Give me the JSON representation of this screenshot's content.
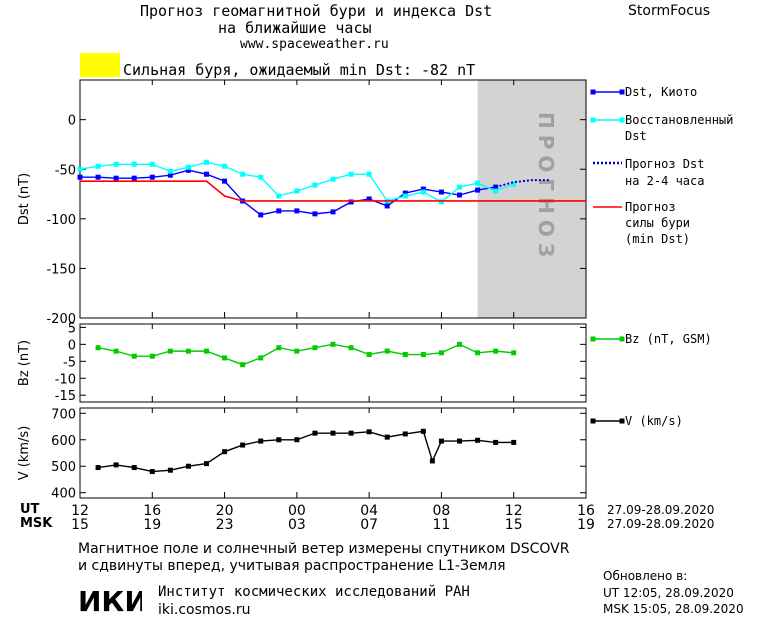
{
  "header": {
    "title_line1": "Прогноз геомагнитной бури и индекса Dst",
    "title_line2": "на ближайшие часы",
    "site": "www.spaceweather.ru",
    "brand": "StormFocus"
  },
  "storm_banner": {
    "label": "Сильная буря, ожидаемый min Dst: -82 nT",
    "swatch_color": "#ffff00"
  },
  "forecast_band_text": "ПРОГНОЗ",
  "legend": {
    "dst_kyoto": "Dst, Киото",
    "restored_1": "Восстановленный",
    "restored_2": "Dst",
    "forecast_1": "Прогноз Dst",
    "forecast_2": "на 2-4 часа",
    "storm_1": "Прогноз",
    "storm_2": "силы бури",
    "storm_3": "(min Dst)",
    "bz": "Bz (nT, GSM)",
    "v": "V (km/s)"
  },
  "time_axis": {
    "ut_label": "UT",
    "msk_label": "MSK",
    "ut_ticks": [
      "12",
      "16",
      "20",
      "00",
      "04",
      "08",
      "12",
      "16"
    ],
    "msk_ticks": [
      "15",
      "19",
      "23",
      "03",
      "07",
      "11",
      "15",
      "19"
    ],
    "date_range": "27.09-28.09.2020"
  },
  "footer": {
    "line1": "Магнитное поле и солнечный ветер измерены спутником DSCOVR",
    "line2": "и сдвинуты вперед, учитывая распространение L1-Земля",
    "institute": "Институт космических исследований РАН",
    "institute_site": "iki.cosmos.ru",
    "logo_text": "ИКИ",
    "updated_label": "Обновлено в:",
    "updated_ut": "UT  12:05, 28.09.2020",
    "updated_msk": "MSK 15:05, 28.09.2020"
  },
  "chart_data": [
    {
      "type": "line",
      "ylabel": "Dst (nT)",
      "xlim": [
        12,
        40
      ],
      "ylim": [
        -200,
        40
      ],
      "yticks": [
        0,
        -50,
        -100,
        -150,
        -200
      ],
      "forecast_band": [
        34,
        40
      ],
      "series": [
        {
          "name": "Dst, Киото",
          "color": "#0000ff",
          "x": [
            12,
            13,
            14,
            15,
            16,
            17,
            18,
            19,
            20,
            21,
            22,
            23,
            24,
            25,
            26,
            27,
            28,
            29,
            30,
            31,
            32,
            33,
            34,
            35
          ],
          "y": [
            -58,
            -58,
            -59,
            -59,
            -58,
            -56,
            -51,
            -55,
            -62,
            -82,
            -96,
            -92,
            -92,
            -95,
            -93,
            -83,
            -80,
            -87,
            -74,
            -70,
            -73,
            -76,
            -71,
            -68
          ]
        },
        {
          "name": "Восстановленный Dst",
          "color": "#00ffff",
          "x": [
            12,
            13,
            14,
            15,
            16,
            17,
            18,
            19,
            20,
            21,
            22,
            23,
            24,
            25,
            26,
            27,
            28,
            29,
            30,
            31,
            32,
            33,
            34,
            35,
            36
          ],
          "y": [
            -50,
            -47,
            -45,
            -45,
            -45,
            -52,
            -48,
            -43,
            -47,
            -55,
            -58,
            -77,
            -72,
            -66,
            -60,
            -55,
            -55,
            -82,
            -77,
            -73,
            -83,
            -68,
            -64,
            -72,
            -65
          ]
        },
        {
          "name": "Прогноз Dst на 2-4 часа",
          "color": "#0000cc",
          "x": [
            35,
            36,
            37,
            38
          ],
          "y": [
            -68,
            -63,
            -61,
            -61
          ]
        },
        {
          "name": "Прогноз силы бури (min Dst)",
          "color": "#ff0000",
          "x": [
            12,
            19,
            20,
            21,
            40
          ],
          "y": [
            -62,
            -62,
            -77,
            -82,
            -82
          ]
        }
      ]
    },
    {
      "type": "line",
      "ylabel": "Bz (nT)",
      "xlim": [
        12,
        40
      ],
      "ylim": [
        -17,
        6
      ],
      "yticks": [
        5,
        0,
        -5,
        -10,
        -15
      ],
      "series": [
        {
          "name": "Bz (nT, GSM)",
          "color": "#00cc00",
          "x": [
            13,
            14,
            15,
            16,
            17,
            18,
            19,
            20,
            21,
            22,
            23,
            24,
            25,
            26,
            27,
            28,
            29,
            30,
            31,
            32,
            33,
            34,
            35,
            36
          ],
          "y": [
            -1,
            -2,
            -3.5,
            -3.5,
            -2,
            -2,
            -2,
            -4,
            -6,
            -4,
            -1,
            -2,
            -1,
            0,
            -1,
            -3,
            -2,
            -3,
            -3,
            -2.5,
            0,
            -2.5,
            -2,
            -2.5
          ]
        }
      ]
    },
    {
      "type": "line",
      "ylabel": "V (km/s)",
      "xlim": [
        12,
        40
      ],
      "ylim": [
        380,
        720
      ],
      "yticks": [
        700,
        600,
        500,
        400
      ],
      "series": [
        {
          "name": "V (km/s)",
          "color": "#000000",
          "x": [
            13,
            14,
            15,
            16,
            17,
            18,
            19,
            20,
            21,
            22,
            23,
            24,
            25,
            26,
            27,
            28,
            29,
            30,
            31,
            31.5,
            32,
            33,
            34,
            35,
            36
          ],
          "y": [
            495,
            505,
            495,
            480,
            485,
            500,
            510,
            555,
            580,
            595,
            600,
            600,
            625,
            625,
            625,
            630,
            610,
            622,
            632,
            520,
            595,
            595,
            598,
            590,
            590
          ]
        }
      ]
    }
  ]
}
